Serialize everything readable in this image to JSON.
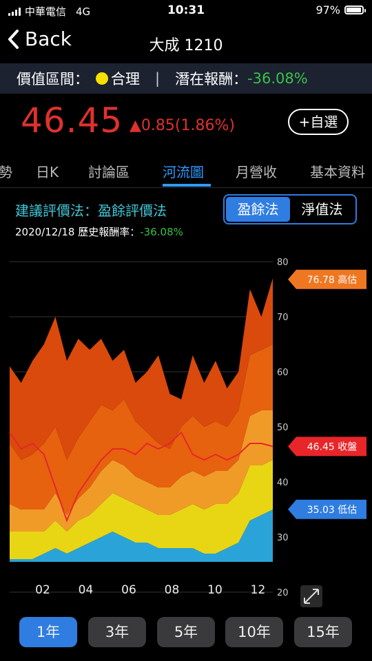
{
  "status_bar": {
    "carrier": "中華電信",
    "network": "4G",
    "time": "10:31",
    "battery": "97%",
    "battery_level": 0.97
  },
  "nav": {
    "back_label": "Back",
    "title": "大成 1210"
  },
  "valuation": {
    "range_label": "價值區間：",
    "range_value": "合理",
    "range_color": "#f5e000",
    "separator": "|",
    "potential_label": "潛在報酬：",
    "potential_value": "-36.08%"
  },
  "quote": {
    "price": "46.45",
    "change": "▲0.85(1.86%)",
    "watch_label": "+自選"
  },
  "tabs": [
    {
      "label": "勢"
    },
    {
      "label": "日K"
    },
    {
      "label": "討論區"
    },
    {
      "label": "河流圖",
      "active": true
    },
    {
      "label": "月營收"
    },
    {
      "label": "基本資料"
    }
  ],
  "method": {
    "label": "建議評價法：盈餘評價法",
    "date": "2020/12/18",
    "hist_label": "歷史報酬率：",
    "hist_value": "-36.08%"
  },
  "segment": {
    "options": [
      "盈餘法",
      "淨值法"
    ],
    "selected": "盈餘法"
  },
  "chart_data": {
    "type": "area",
    "x": [
      "01/01",
      "01/16",
      "02/01",
      "02/16",
      "03/01",
      "03/16",
      "04/01",
      "04/16",
      "05/01",
      "05/16",
      "06/01",
      "06/16",
      "07/01",
      "07/16",
      "08/01",
      "08/16",
      "09/01",
      "09/16",
      "10/01",
      "10/16",
      "11/01",
      "11/16",
      "12/01",
      "12/16"
    ],
    "x_ticks": [
      "02",
      "04",
      "06",
      "08",
      "10",
      "12"
    ],
    "y_ticks": [
      20,
      30,
      40,
      50,
      60,
      70,
      80
    ],
    "ylim": [
      20,
      80
    ],
    "colors": {
      "band1": "#2aa3d8",
      "band2": "#e8d615",
      "band3": "#f09b28",
      "band4": "#e6620e",
      "band5": "#d94a0c",
      "price": "#e8262a",
      "bg": "#000"
    },
    "series": [
      {
        "name": "b0",
        "values": [
          26,
          26,
          26,
          27,
          28,
          27,
          28,
          29,
          30,
          31,
          30,
          29,
          29,
          28,
          28,
          28,
          28,
          27,
          27,
          28,
          29,
          33,
          34,
          35
        ]
      },
      {
        "name": "b1",
        "values": [
          31,
          31,
          31,
          31,
          33,
          31,
          33,
          34,
          36,
          38,
          37,
          36,
          35,
          34,
          34,
          35,
          36,
          35,
          36,
          36,
          38,
          43,
          43,
          44
        ]
      },
      {
        "name": "b2",
        "values": [
          36,
          35,
          35,
          35,
          38,
          34,
          37,
          39,
          42,
          44,
          43,
          41,
          40,
          39,
          39,
          41,
          42,
          41,
          42,
          42,
          44,
          52,
          53,
          53
        ]
      },
      {
        "name": "b3",
        "values": [
          47,
          44,
          45,
          47,
          50,
          44,
          48,
          51,
          54,
          53,
          55,
          51,
          49,
          47,
          46,
          50,
          52,
          50,
          51,
          50,
          53,
          63,
          64,
          65
        ]
      },
      {
        "name": "b4",
        "values": [
          61,
          58,
          62,
          65,
          70,
          62,
          66,
          64,
          66,
          62,
          64,
          58,
          60,
          63,
          56,
          55,
          63,
          58,
          62,
          57,
          60,
          75,
          70,
          77
        ]
      },
      {
        "name": "price",
        "values": [
          49,
          46,
          47,
          45,
          39,
          33,
          38,
          41,
          44,
          46,
          46,
          45,
          47,
          46,
          47,
          49,
          45,
          44,
          45,
          44,
          45,
          47,
          47,
          46.45
        ]
      }
    ],
    "labels": [
      {
        "text": "76.78 高估",
        "color": "#f07722",
        "value": 76.78
      },
      {
        "text": "46.45 收盤",
        "color": "#e8262a",
        "value": 46.45
      },
      {
        "text": "35.03 低估",
        "color": "#2f7de0",
        "value": 35.03
      }
    ]
  },
  "periods": [
    {
      "label": "1年",
      "active": true
    },
    {
      "label": "3年"
    },
    {
      "label": "5年"
    },
    {
      "label": "10年"
    },
    {
      "label": "15年"
    }
  ]
}
